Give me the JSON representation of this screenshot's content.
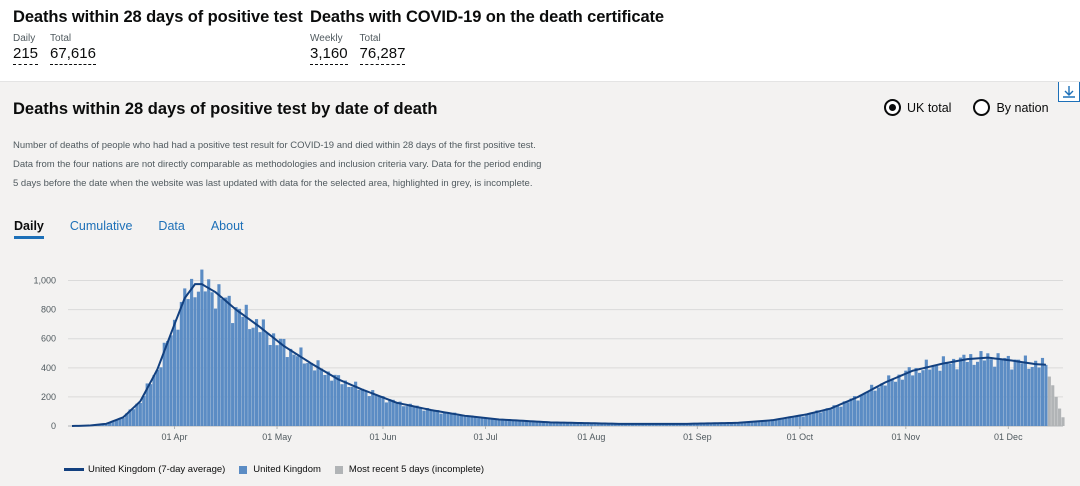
{
  "headline": {
    "deaths28": {
      "title": "Deaths within 28 days of positive test",
      "daily_label": "Daily",
      "daily_value": "215",
      "total_label": "Total",
      "total_value": "67,616"
    },
    "certificate": {
      "title": "Deaths with COVID-19 on the death certificate",
      "weekly_label": "Weekly",
      "weekly_value": "3,160",
      "total_label": "Total",
      "total_value": "76,287"
    }
  },
  "card": {
    "title": "Deaths within 28 days of positive test by date of death",
    "radios": [
      {
        "label": "UK total",
        "selected": true
      },
      {
        "label": "By nation",
        "selected": false
      }
    ],
    "description": "Number of deaths of people who had had a positive test result for COVID-19 and died within 28 days of the first positive test. Data from the four nations are not directly comparable as methodologies and inclusion criteria vary. Data for the period ending 5 days before the date when the website was last updated with data for the selected area, highlighted in grey, is incomplete.",
    "tabs": [
      {
        "label": "Daily",
        "active": true
      },
      {
        "label": "Cumulative",
        "active": false
      },
      {
        "label": "Data",
        "active": false
      },
      {
        "label": "About",
        "active": false
      }
    ],
    "legend": {
      "average": "United Kingdom (7-day average)",
      "daily": "United Kingdom",
      "incomplete": "Most recent 5 days (incomplete)"
    }
  },
  "colors": {
    "bar": "#5b8cc4",
    "line": "#12407f",
    "incomplete": "#b1b4b6",
    "accent": "#1d70b8"
  },
  "chart_data": {
    "type": "bar",
    "title": "Deaths within 28 days of positive test by date of death",
    "ylim": [
      0,
      1100
    ],
    "yticks": [
      0,
      200,
      400,
      600,
      800,
      1000
    ],
    "ytick_labels": [
      "0",
      "200",
      "400",
      "600",
      "800",
      "1,000"
    ],
    "start_date": "2020-03-02",
    "xticks": [
      {
        "day": 30,
        "label": "01 Apr"
      },
      {
        "day": 60,
        "label": "01 May"
      },
      {
        "day": 91,
        "label": "01 Jun"
      },
      {
        "day": 121,
        "label": "01 Jul"
      },
      {
        "day": 152,
        "label": "01 Aug"
      },
      {
        "day": 183,
        "label": "01 Sep"
      },
      {
        "day": 213,
        "label": "01 Oct"
      },
      {
        "day": 244,
        "label": "01 Nov"
      },
      {
        "day": 274,
        "label": "01 Dec"
      }
    ],
    "average_anchors": [
      [
        0,
        0
      ],
      [
        5,
        3
      ],
      [
        10,
        15
      ],
      [
        15,
        60
      ],
      [
        20,
        170
      ],
      [
        25,
        390
      ],
      [
        30,
        700
      ],
      [
        33,
        880
      ],
      [
        36,
        975
      ],
      [
        38,
        975
      ],
      [
        42,
        920
      ],
      [
        48,
        800
      ],
      [
        55,
        680
      ],
      [
        62,
        550
      ],
      [
        70,
        430
      ],
      [
        78,
        320
      ],
      [
        85,
        250
      ],
      [
        95,
        160
      ],
      [
        105,
        110
      ],
      [
        115,
        70
      ],
      [
        125,
        45
      ],
      [
        140,
        25
      ],
      [
        160,
        15
      ],
      [
        180,
        15
      ],
      [
        195,
        22
      ],
      [
        205,
        40
      ],
      [
        215,
        80
      ],
      [
        222,
        120
      ],
      [
        230,
        200
      ],
      [
        238,
        300
      ],
      [
        246,
        380
      ],
      [
        255,
        430
      ],
      [
        262,
        460
      ],
      [
        268,
        470
      ],
      [
        275,
        450
      ],
      [
        282,
        425
      ],
      [
        286,
        420
      ],
      [
        290,
        400
      ]
    ],
    "incomplete_days": 5,
    "incomplete_values": [
      340,
      280,
      200,
      120,
      60
    ],
    "series": [
      {
        "name": "United Kingdom (7-day average)",
        "kind": "line"
      },
      {
        "name": "United Kingdom",
        "kind": "bar"
      },
      {
        "name": "Most recent 5 days (incomplete)",
        "kind": "bar"
      }
    ]
  }
}
